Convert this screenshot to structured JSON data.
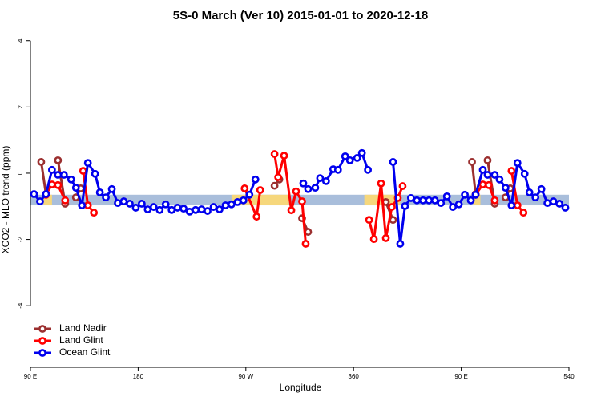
{
  "chart_data": {
    "type": "line",
    "title": "5S-0 March (Ver 10)   2015-01-01 to 2020-12-18",
    "x_label": "Longitude",
    "y_label": "XCO2 - MLO trend (ppm)",
    "xlim": [
      90,
      540
    ],
    "ylim": [
      -5.86,
      4.26
    ],
    "xticks": [
      {
        "value": 90,
        "label": "90 E"
      },
      180,
      {
        "value": 270,
        "label": "90 W"
      },
      360,
      {
        "value": 450,
        "label": "90 E"
      },
      540
    ],
    "yticks": [
      -4,
      -2,
      0,
      2,
      4
    ],
    "band": {
      "ylim": [
        -0.97,
        -0.65
      ],
      "color": "#a9bedb",
      "highlight_xlim": [
        [
          101,
          108
        ],
        [
          258,
          306
        ],
        [
          369,
          399
        ],
        [
          460,
          466
        ]
      ],
      "highlight_color": "#f6d77c"
    },
    "legend": "bottom-left",
    "series": [
      {
        "name": "Land Nadir",
        "color": "#9b2f2f",
        "x": [
          99,
          103,
          105,
          113,
          119,
          121,
          128,
          132,
          200,
          294,
          298,
          300,
          317,
          322,
          340,
          387,
          393,
          430,
          459,
          462,
          465,
          472,
          478,
          480,
          487,
          491
        ],
        "values": [
          0.34,
          -0.63,
          null,
          0.39,
          -0.92,
          null,
          -0.73,
          -0.46,
          null,
          -0.38,
          -0.19,
          null,
          -1.36,
          -1.77,
          null,
          -0.87,
          -1.41,
          null,
          0.34,
          -0.63,
          null,
          0.39,
          -0.92,
          null,
          -0.73,
          -0.46
        ]
      },
      {
        "name": "Land Glint",
        "color": "#ff0000",
        "x": [
          103,
          108,
          113,
          119,
          121,
          134,
          138,
          143,
          200,
          269,
          279,
          282,
          290,
          294,
          297,
          302,
          308,
          312,
          317,
          320,
          350,
          373,
          377,
          383,
          387,
          392,
          397,
          401,
          430,
          462,
          468,
          473,
          478,
          480,
          492,
          497,
          502
        ],
        "values": [
          -0.65,
          -0.34,
          -0.36,
          -0.82,
          null,
          0.07,
          -0.97,
          -1.19,
          null,
          -0.46,
          -1.31,
          -0.51,
          null,
          0.58,
          -0.12,
          0.53,
          -1.12,
          -0.55,
          -0.85,
          -2.13,
          null,
          -1.41,
          -1.99,
          -0.31,
          -1.96,
          -1.02,
          -0.75,
          -0.39,
          null,
          -0.65,
          -0.34,
          -0.36,
          -0.82,
          null,
          0.07,
          -0.97,
          -1.19
        ]
      },
      {
        "name": "Ocean Glint",
        "color": "#0000ee",
        "x": [
          93,
          98,
          103,
          108,
          113,
          118,
          124,
          128,
          133,
          138,
          144,
          148,
          153,
          158,
          163,
          168,
          173,
          178,
          183,
          188,
          193,
          198,
          203,
          208,
          213,
          218,
          223,
          228,
          233,
          238,
          243,
          248,
          253,
          258,
          263,
          268,
          273,
          278,
          303,
          318,
          322,
          328,
          332,
          337,
          343,
          347,
          353,
          357,
          363,
          367,
          372,
          380,
          393,
          399,
          403,
          408,
          413,
          418,
          423,
          428,
          433,
          438,
          443,
          448,
          453,
          458,
          462,
          468,
          472,
          478,
          482,
          487,
          492,
          497,
          503,
          507,
          512,
          517,
          522,
          527,
          532,
          537
        ],
        "values": [
          -0.63,
          -0.85,
          -0.63,
          0.1,
          -0.05,
          -0.05,
          -0.19,
          -0.44,
          -0.97,
          0.31,
          -0.02,
          -0.58,
          -0.73,
          -0.48,
          -0.9,
          -0.85,
          -0.92,
          -1.04,
          -0.92,
          -1.09,
          -1.02,
          -1.11,
          -0.94,
          -1.11,
          -1.04,
          -1.07,
          -1.16,
          -1.11,
          -1.09,
          -1.14,
          -1.02,
          -1.09,
          -0.97,
          -0.94,
          -0.87,
          -0.82,
          -0.65,
          -0.19,
          null,
          -0.31,
          -0.48,
          -0.44,
          -0.15,
          -0.24,
          0.12,
          0.1,
          0.51,
          0.39,
          0.46,
          0.61,
          0.1,
          null,
          0.34,
          -2.13,
          -0.99,
          -0.75,
          -0.82,
          -0.82,
          -0.82,
          -0.82,
          -0.9,
          -0.7,
          -1.02,
          -0.94,
          -0.65,
          -0.82,
          -0.65,
          0.1,
          -0.05,
          -0.05,
          -0.19,
          -0.44,
          -0.97,
          0.31,
          -0.02,
          -0.58,
          -0.73,
          -0.48,
          -0.9,
          -0.85,
          -0.92,
          -1.04
        ]
      }
    ]
  }
}
